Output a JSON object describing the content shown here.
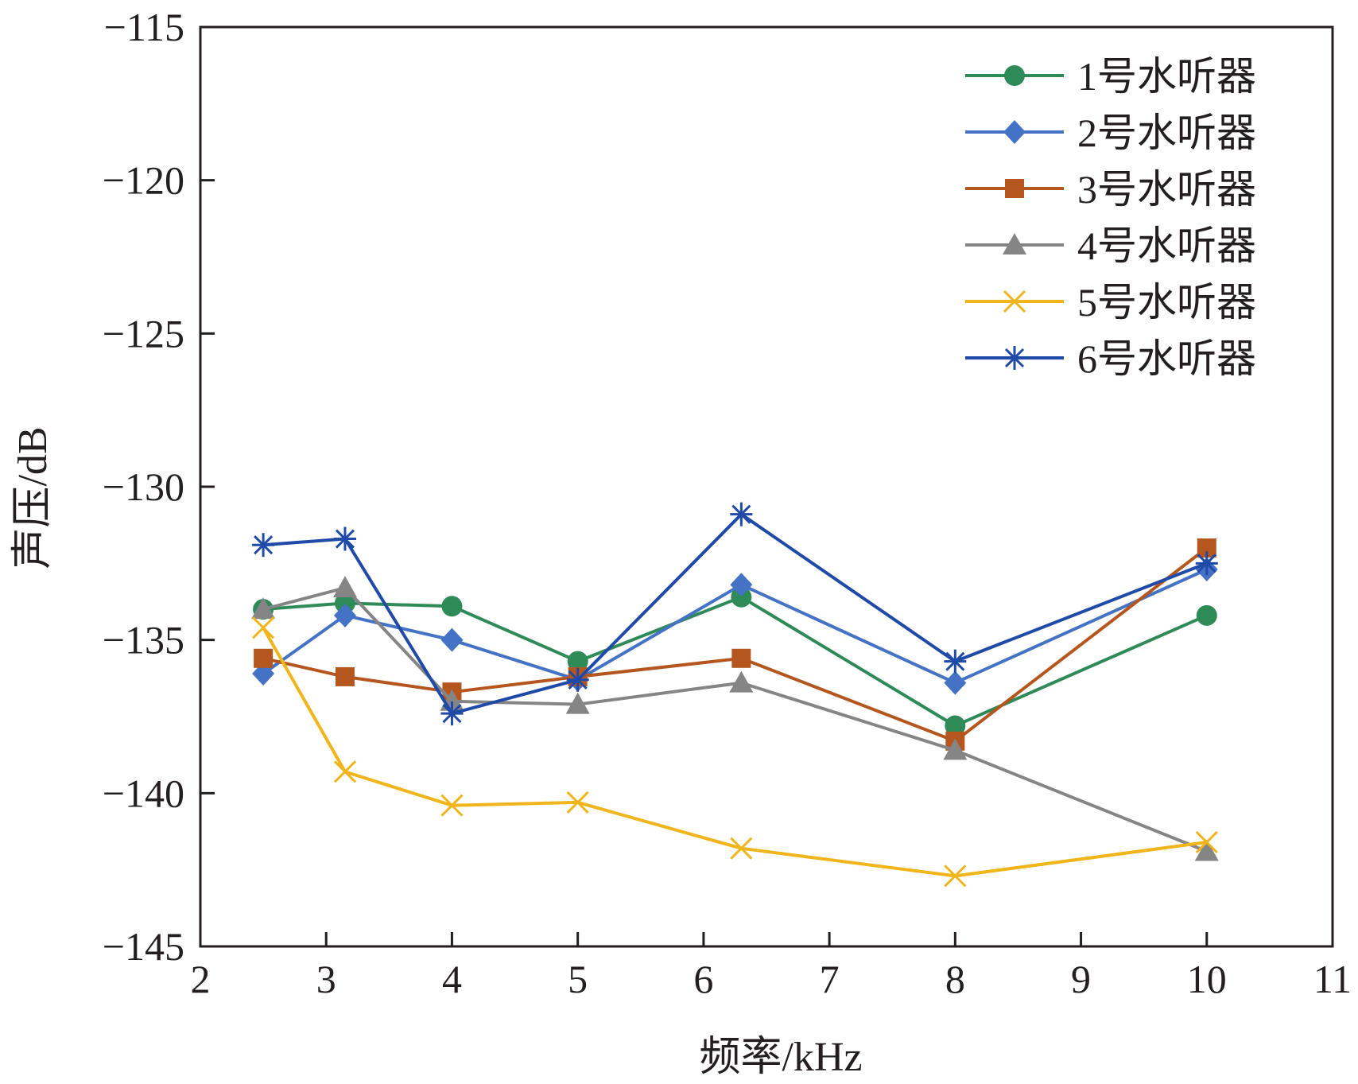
{
  "chart_data": {
    "type": "line",
    "xlabel": "频率/kHz",
    "ylabel": "声压/dB",
    "xlim": [
      2,
      11
    ],
    "ylim": [
      -145,
      -115
    ],
    "xticks": [
      "2",
      "3",
      "4",
      "5",
      "6",
      "7",
      "8",
      "9",
      "10",
      "11"
    ],
    "yticks": [
      "−115",
      "−120",
      "−125",
      "−130",
      "−135",
      "−140",
      "−145"
    ],
    "ytick_values": [
      -115,
      -120,
      -125,
      -130,
      -135,
      -140,
      -145
    ],
    "grid": false,
    "legend_position": "top-right",
    "x": [
      2.5,
      3.15,
      4,
      5,
      6.3,
      8,
      10
    ],
    "series": [
      {
        "name": "1号水听器",
        "color": "#2e8b57",
        "marker": "circle",
        "values": [
          -134.0,
          -133.8,
          -133.9,
          -135.7,
          -133.6,
          -137.8,
          -134.2
        ]
      },
      {
        "name": "2号水听器",
        "color": "#4472c4",
        "marker": "diamond",
        "values": [
          -136.1,
          -134.2,
          -135.0,
          -136.3,
          -133.2,
          -136.4,
          -132.7
        ]
      },
      {
        "name": "3号水听器",
        "color": "#b5561f",
        "marker": "square",
        "values": [
          -135.6,
          -136.2,
          -136.7,
          -136.2,
          -135.6,
          -138.3,
          -132.0
        ]
      },
      {
        "name": "4号水听器",
        "color": "#858585",
        "marker": "triangle",
        "values": [
          -134.0,
          -133.3,
          -137.0,
          -137.1,
          -136.4,
          -138.6,
          -141.9
        ]
      },
      {
        "name": "5号水听器",
        "color": "#f0b51b",
        "marker": "x",
        "values": [
          -134.6,
          -139.3,
          -140.4,
          -140.3,
          -141.8,
          -142.7,
          -141.6
        ]
      },
      {
        "name": "6号水听器",
        "color": "#1f4aa8",
        "marker": "asterisk",
        "values": [
          -131.9,
          -131.7,
          -137.4,
          -136.3,
          -130.9,
          -135.7,
          -132.5
        ]
      }
    ]
  }
}
